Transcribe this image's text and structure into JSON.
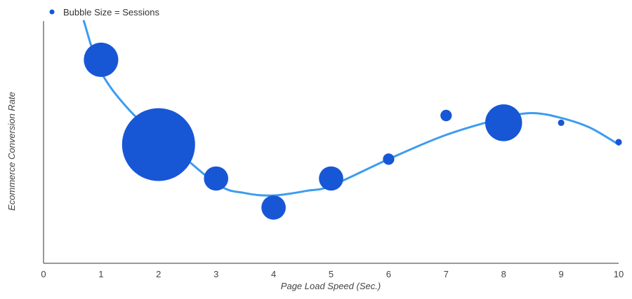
{
  "chart_data": {
    "type": "scatter",
    "subtype": "bubble",
    "title": "",
    "xlabel": "Page Load Speed (Sec.)",
    "ylabel": "Ecommerce Conversion Rate",
    "xlim": [
      0,
      10
    ],
    "ylim": [
      0,
      1
    ],
    "x_ticks": [
      "0",
      "1",
      "2",
      "3",
      "4",
      "5",
      "6",
      "7",
      "8",
      "9",
      "10"
    ],
    "y_ticks_shown": false,
    "grid": false,
    "legend": {
      "label": "Bubble Size = Sessions",
      "placement": "top-left"
    },
    "colors": {
      "bubble": "#1757d6",
      "trend": "#3d9cf0",
      "axis": "#333333"
    },
    "series": [
      {
        "name": "Bubble Size = Sessions",
        "points": [
          {
            "x": 1,
            "y": 0.84,
            "size": 2.0
          },
          {
            "x": 2,
            "y": 0.49,
            "size": 9.0
          },
          {
            "x": 3,
            "y": 0.35,
            "size": 1.0
          },
          {
            "x": 4,
            "y": 0.23,
            "size": 1.0
          },
          {
            "x": 5,
            "y": 0.35,
            "size": 1.0
          },
          {
            "x": 6,
            "y": 0.43,
            "size": 0.22
          },
          {
            "x": 7,
            "y": 0.61,
            "size": 0.22
          },
          {
            "x": 8,
            "y": 0.58,
            "size": 2.3
          },
          {
            "x": 9,
            "y": 0.58,
            "size": 0.07
          },
          {
            "x": 10,
            "y": 0.5,
            "size": 0.07
          }
        ]
      }
    ],
    "trend_line": {
      "type": "smooth",
      "points": [
        {
          "x": 0.7,
          "y": 1.0
        },
        {
          "x": 1,
          "y": 0.79
        },
        {
          "x": 1.5,
          "y": 0.63
        },
        {
          "x": 2,
          "y": 0.53
        },
        {
          "x": 3,
          "y": 0.33
        },
        {
          "x": 3.5,
          "y": 0.29
        },
        {
          "x": 4,
          "y": 0.28
        },
        {
          "x": 4.6,
          "y": 0.3
        },
        {
          "x": 5,
          "y": 0.32
        },
        {
          "x": 6,
          "y": 0.43
        },
        {
          "x": 7,
          "y": 0.53
        },
        {
          "x": 8,
          "y": 0.6
        },
        {
          "x": 8.5,
          "y": 0.62
        },
        {
          "x": 9,
          "y": 0.6
        },
        {
          "x": 9.5,
          "y": 0.56
        },
        {
          "x": 10,
          "y": 0.49
        }
      ]
    }
  }
}
